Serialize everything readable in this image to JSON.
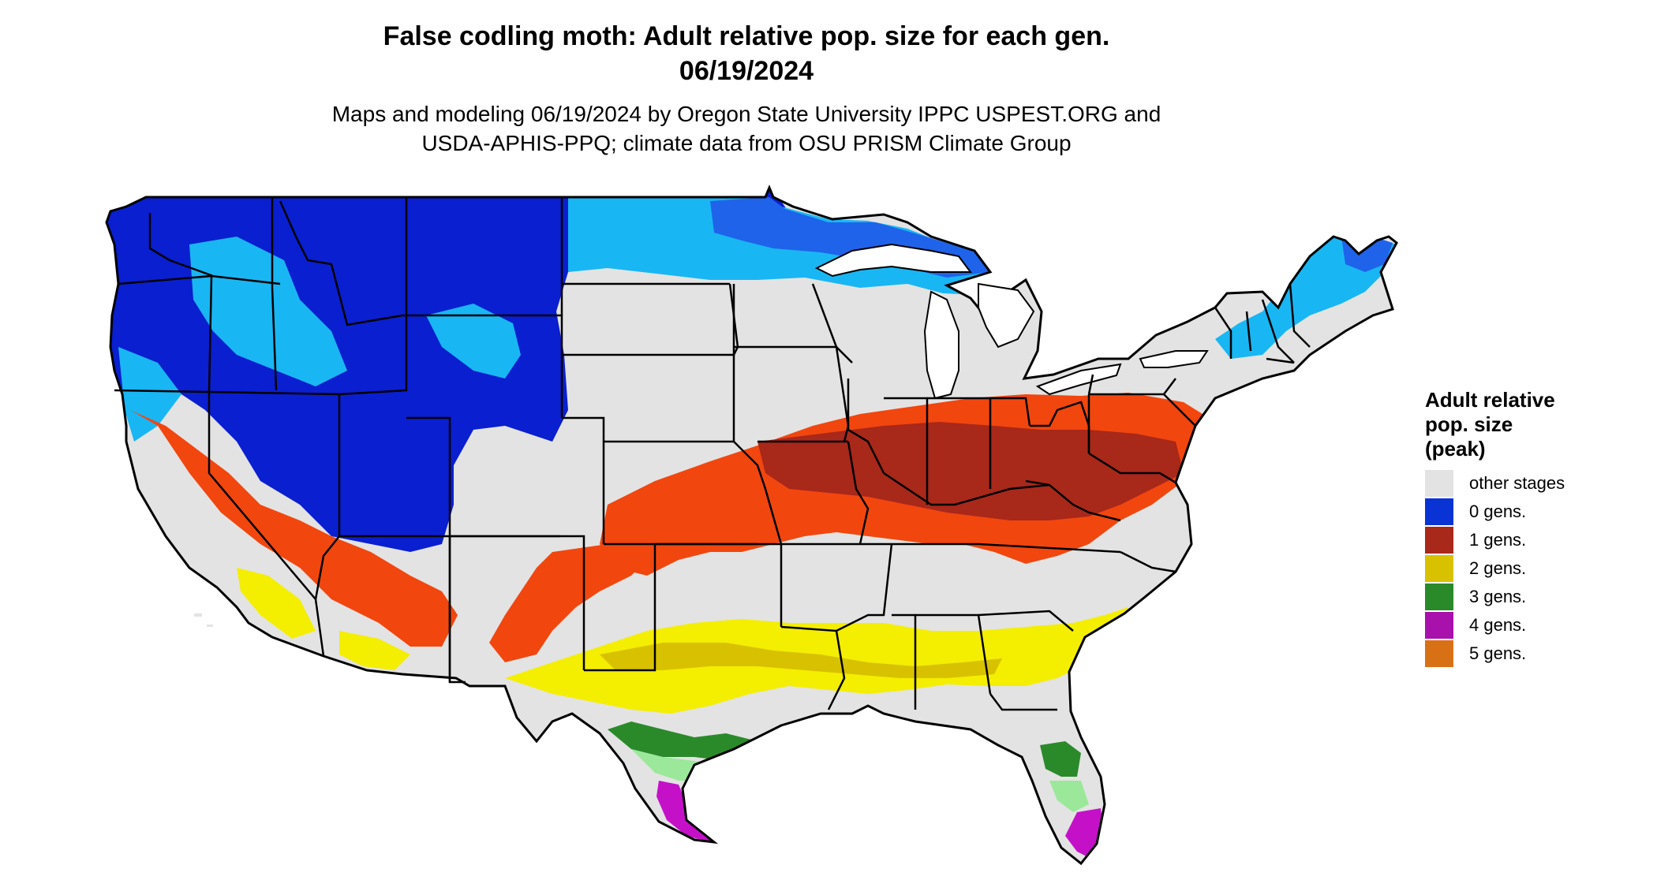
{
  "title": {
    "line1": "False codling moth: Adult relative pop. size for each gen.",
    "line2": "06/19/2024"
  },
  "subtitle": {
    "line1": "Maps and modeling 06/19/2024 by Oregon State University IPPC USPEST.ORG and",
    "line2": "USDA-APHIS-PPQ; climate data from OSU PRISM Climate Group"
  },
  "legend": {
    "title_lines": [
      "Adult relative",
      "pop. size",
      "(peak)"
    ],
    "items": [
      {
        "label": "other stages",
        "color": "#e3e3e3"
      },
      {
        "label": "0 gens.",
        "color": "#0a33d6"
      },
      {
        "label": "1 gens.",
        "color": "#a8281a"
      },
      {
        "label": "2 gens.",
        "color": "#d8c200"
      },
      {
        "label": "3 gens.",
        "color": "#2a8a2a"
      },
      {
        "label": "4 gens.",
        "color": "#a811ab"
      },
      {
        "label": "5 gens.",
        "color": "#d87116"
      }
    ]
  },
  "map": {
    "colors": {
      "background": "#e3e3e3",
      "dark_blue": "#0a1fd0",
      "mid_blue": "#1f63ea",
      "light_blue": "#19b6f4",
      "orange_red": "#f2460f",
      "dark_red": "#a8281a",
      "yellow": "#f4ee00",
      "olive_yellow": "#d8c200",
      "green": "#2a8a2a",
      "light_green": "#9be89b",
      "magenta": "#c411c8",
      "state_line": "#000000"
    }
  }
}
